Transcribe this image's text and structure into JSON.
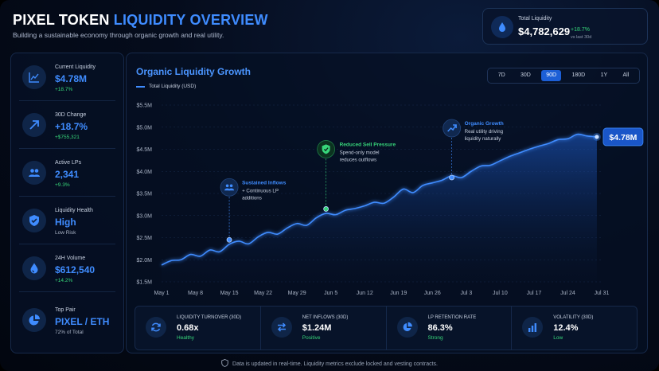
{
  "header": {
    "title_white": "PIXEL TOKEN",
    "title_blue": "LIQUIDITY OVERVIEW",
    "subtitle": "Building a sustainable economy through organic growth and real utility."
  },
  "total_card": {
    "label": "Total Liquidity",
    "value": "$4,782,629",
    "change": "+18.7%",
    "vs": "vs last 30d",
    "icon": "droplet-icon"
  },
  "sidebar": {
    "items": [
      {
        "label": "Current Liquidity",
        "value": "$4.78M",
        "sub": "+18.7%",
        "sub_color": "green",
        "icon": "trend-chart-icon"
      },
      {
        "label": "30D Change",
        "value": "+18.7%",
        "sub": "+$755,321",
        "sub_color": "green",
        "icon": "arrow-up-right-icon"
      },
      {
        "label": "Active LPs",
        "value": "2,341",
        "sub": "+9.3%",
        "sub_color": "green",
        "icon": "users-icon"
      },
      {
        "label": "Liquidity Health",
        "value": "High",
        "sub": "Low Risk",
        "sub_color": "grey",
        "icon": "shield-icon"
      },
      {
        "label": "24H Volume",
        "value": "$612,540",
        "sub": "+14.2%",
        "sub_color": "green",
        "icon": "droplet-icon"
      },
      {
        "label": "Top Pair",
        "value": "PIXEL / ETH",
        "sub": "72% of Total",
        "sub_color": "grey",
        "icon": "pie-icon"
      }
    ]
  },
  "chart_panel": {
    "title": "Organic Liquidity Growth",
    "legend": "Total Liquidity (USD)",
    "ranges": [
      "7D",
      "30D",
      "90D",
      "180D",
      "1Y",
      "All"
    ],
    "active_range": "90D"
  },
  "chart_data": {
    "type": "area",
    "title": "Organic Liquidity Growth",
    "xlabel": "",
    "ylabel": "Total Liquidity (USD)",
    "ylim": [
      1.5,
      5.5
    ],
    "y_unit": "$M",
    "yticks": [
      "$1.5M",
      "$2.0M",
      "$2.5M",
      "$3.0M",
      "$3.5M",
      "$4.0M",
      "$4.5M",
      "$5.0M",
      "$5.5M"
    ],
    "ytick_values": [
      1.5,
      2.0,
      2.5,
      3.0,
      3.5,
      4.0,
      4.5,
      5.0,
      5.5
    ],
    "xticks": [
      "May 1",
      "May 8",
      "May 15",
      "May 22",
      "May 29",
      "Jun 5",
      "Jun 12",
      "Jun 19",
      "Jun 26",
      "Jul 3",
      "Jul 10",
      "Jul 17",
      "Jul 24",
      "Jul 31"
    ],
    "xlim": [
      0,
      91
    ],
    "series": [
      {
        "name": "Total Liquidity (USD)",
        "x": [
          0,
          2,
          4,
          6,
          8,
          10,
          12,
          14,
          16,
          18,
          20,
          22,
          24,
          26,
          28,
          30,
          32,
          34,
          36,
          38,
          40,
          42,
          44,
          46,
          48,
          50,
          52,
          54,
          56,
          58,
          60,
          62,
          64,
          66,
          68,
          70,
          72,
          74,
          76,
          78,
          80,
          82,
          84,
          86,
          88,
          90
        ],
        "values": [
          1.88,
          1.98,
          2.0,
          2.12,
          2.08,
          2.22,
          2.18,
          2.35,
          2.42,
          2.36,
          2.52,
          2.62,
          2.58,
          2.72,
          2.82,
          2.78,
          2.95,
          3.05,
          3.02,
          3.12,
          3.16,
          3.22,
          3.3,
          3.28,
          3.42,
          3.6,
          3.52,
          3.68,
          3.74,
          3.8,
          3.9,
          3.86,
          4.0,
          4.12,
          4.14,
          4.24,
          4.34,
          4.42,
          4.5,
          4.57,
          4.63,
          4.72,
          4.74,
          4.84,
          4.8,
          4.78
        ]
      }
    ],
    "end_label": "$4.78M",
    "annotations": [
      {
        "x": 14,
        "y": 2.45,
        "title": "Sustained Inflows",
        "text": [
          "+ Continuous LP",
          "additions"
        ],
        "icon": "users-icon"
      },
      {
        "x": 34,
        "y": 3.15,
        "title": "Reduced Sell Pressure",
        "text": [
          "Spend-only model",
          "reduces outflows"
        ],
        "icon": "shield-check-icon"
      },
      {
        "x": 60,
        "y": 3.86,
        "title": "Organic Growth",
        "text": [
          "Real utility driving",
          "liquidity naturally"
        ],
        "icon": "trend-up-icon"
      }
    ]
  },
  "metrics": [
    {
      "label": "LIQUIDITY TURNOVER (30D)",
      "value": "0.68x",
      "sub": "Healthy",
      "icon": "refresh-icon"
    },
    {
      "label": "NET INFLOWS (30D)",
      "value": "$1.24M",
      "sub": "Positive",
      "icon": "swap-arrows-icon"
    },
    {
      "label": "LP RETENTION RATE",
      "value": "86.3%",
      "sub": "Strong",
      "icon": "pie-icon"
    },
    {
      "label": "VOLATILITY (30D)",
      "value": "12.4%",
      "sub": "Low",
      "icon": "bar-chart-icon"
    }
  ],
  "footer": {
    "text": "Data is updated in real-time. Liquidity metrics exclude locked and vesting contracts."
  },
  "colors": {
    "accent": "#3f8cff",
    "positive": "#37d67a",
    "annotation_green": "#37d67a"
  }
}
